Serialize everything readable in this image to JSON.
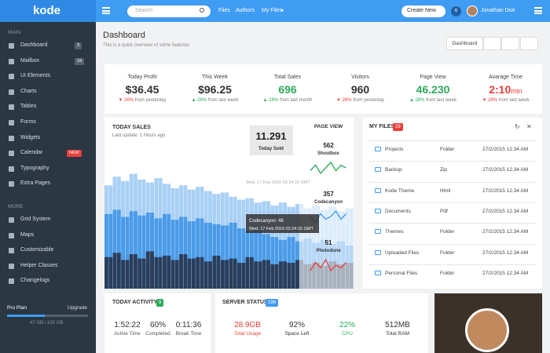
{
  "header": {
    "logo": "kode",
    "search": "Search",
    "nav": [
      "Files",
      "Authors",
      "My Files"
    ],
    "create": "Create New",
    "notifications": "6",
    "user": "Jonathan Doe"
  },
  "sidebar": {
    "sections": [
      {
        "title": "MAIN",
        "items": [
          {
            "label": "Dashboard",
            "badge": "3"
          },
          {
            "label": "Mailbox",
            "badge": "19"
          },
          {
            "label": "UI Elements"
          },
          {
            "label": "Charts"
          },
          {
            "label": "Tables"
          },
          {
            "label": "Forms"
          },
          {
            "label": "Widgets"
          },
          {
            "label": "Calendar",
            "badge": "NEW"
          },
          {
            "label": "Typography"
          },
          {
            "label": "Extra Pages"
          }
        ]
      },
      {
        "title": "MORE",
        "items": [
          {
            "label": "Grid System"
          },
          {
            "label": "Maps"
          },
          {
            "label": "Customizable"
          },
          {
            "label": "Helper Classes"
          },
          {
            "label": "Changelogs"
          }
        ]
      }
    ],
    "plan": {
      "name": "Pro Plan",
      "action": "Upgrade",
      "usage": "47 GB / 100 GB",
      "progress": 47
    }
  },
  "page": {
    "title": "Dashboard",
    "subtitle": "This is a quick overview of some features",
    "button": "Dashboard"
  },
  "stats": [
    {
      "label": "Today Profit",
      "value": "$36.45",
      "change": "26%",
      "note": "from yesterday",
      "trend": "down",
      "color": "#333333"
    },
    {
      "label": "This Week",
      "value": "$96.25",
      "change": "26%",
      "note": "from last week",
      "trend": "up",
      "color": "#333333"
    },
    {
      "label": "Total Sales",
      "value": "696",
      "change": "26%",
      "note": "from last month",
      "trend": "up",
      "color": "#2eaa5c"
    },
    {
      "label": "Visitors",
      "value": "960",
      "change": "26%",
      "note": "from yesterday",
      "trend": "down",
      "color": "#333333"
    },
    {
      "label": "Page View",
      "value": "46.230",
      "change": "26%",
      "note": "from last week",
      "trend": "up",
      "color": "#2eaa5c"
    },
    {
      "label": "Avarage Time",
      "value": "2:10",
      "unit": "min",
      "change": "26%",
      "note": "from last week",
      "trend": "down",
      "color": "#e8403a"
    }
  ],
  "sales": {
    "title": "TODAY SALES",
    "subtitle": "Last update: 1 Hours ago",
    "sold": "11.291",
    "sold_label": "Today Sold",
    "page_view": "PAGE VIEW",
    "tooltip_date": "Wed, 17 Feb 2016 02:24:15 GMT",
    "tooltip_value": "Codecanyon: 48",
    "tooltip_date2": "Wed, 17 Feb 2016 02:24:15 GMT",
    "chart_data": {
      "type": "bar",
      "ylim": [
        0,
        100
      ],
      "series": [
        {
          "color": "#a9d0f5",
          "values": [
            72,
            78,
            75,
            80,
            76,
            74,
            77,
            73,
            70,
            72,
            69,
            71,
            68,
            66,
            67,
            64,
            62,
            63,
            60,
            61,
            58,
            60,
            57,
            59,
            56,
            58,
            55,
            57,
            54,
            56
          ]
        },
        {
          "color": "#4b9ce8",
          "values": [
            52,
            55,
            50,
            54,
            51,
            53,
            49,
            52,
            48,
            50,
            47,
            49,
            46,
            45,
            44,
            46,
            42,
            40,
            41,
            38,
            36,
            34,
            36,
            33,
            35,
            32,
            34,
            31,
            33,
            30
          ]
        },
        {
          "color": "#2a3e5c",
          "values": [
            22,
            25,
            20,
            24,
            21,
            26,
            22,
            23,
            20,
            24,
            21,
            22,
            19,
            23,
            20,
            21,
            18,
            22,
            19,
            20,
            17,
            19,
            18,
            20,
            17,
            18,
            16,
            19,
            17,
            18
          ]
        }
      ]
    },
    "sparks": [
      {
        "value": "562",
        "name": "Shoutbox",
        "type": "line",
        "color": "#2eaa5c",
        "values": [
          5,
          7,
          4,
          6,
          8,
          5,
          7,
          6
        ]
      },
      {
        "value": "357",
        "name": "Codecanyon",
        "type": "line",
        "color": "#3f9cf3",
        "values": [
          6,
          4,
          7,
          5,
          6,
          8,
          5,
          7
        ]
      },
      {
        "value": "51",
        "name": "Photodune",
        "type": "line",
        "color": "#e8403a",
        "values": [
          4,
          7,
          5,
          8,
          4,
          6,
          5,
          7
        ]
      }
    ]
  },
  "files": {
    "title": "MY FILES",
    "badge": "29",
    "rows": [
      [
        "Projects",
        "Folder",
        "27/2/2015 12.34 AM"
      ],
      [
        "Backup",
        "Zip",
        "27/2/2015 12.34 AM"
      ],
      [
        "Kode Theme",
        "Html",
        "27/2/2015 12.34 AM"
      ],
      [
        "Documents",
        "Pdf",
        "27/2/2015 12.34 AM"
      ],
      [
        "Themes",
        "Folder",
        "27/2/2015 12.34 AM"
      ],
      [
        "Uploaded Files",
        "Folder",
        "27/2/2015 12.34 AM"
      ],
      [
        "Personal Files",
        "Folder",
        "27/2/2015 12.34 AM"
      ]
    ]
  },
  "activity": {
    "title": "TODAY ACTIVITY",
    "badge": "9",
    "items": [
      {
        "value": "1:52:22",
        "label": "Active Time"
      },
      {
        "value": "60%",
        "label": "Completed"
      },
      {
        "value": "0:11:36",
        "label": "Break Time"
      }
    ]
  },
  "server": {
    "title": "SERVER STATUS",
    "badge": "196",
    "items": [
      {
        "value": "28.9GB",
        "label": "Total Usage",
        "color": "#e8403a"
      },
      {
        "value": "92%",
        "label": "Space Left",
        "color": "#333333"
      },
      {
        "value": "22%",
        "label": "CPU",
        "color": "#2eaa5c"
      },
      {
        "value": "512MB",
        "label": "Total RAM",
        "color": "#333333"
      }
    ]
  }
}
